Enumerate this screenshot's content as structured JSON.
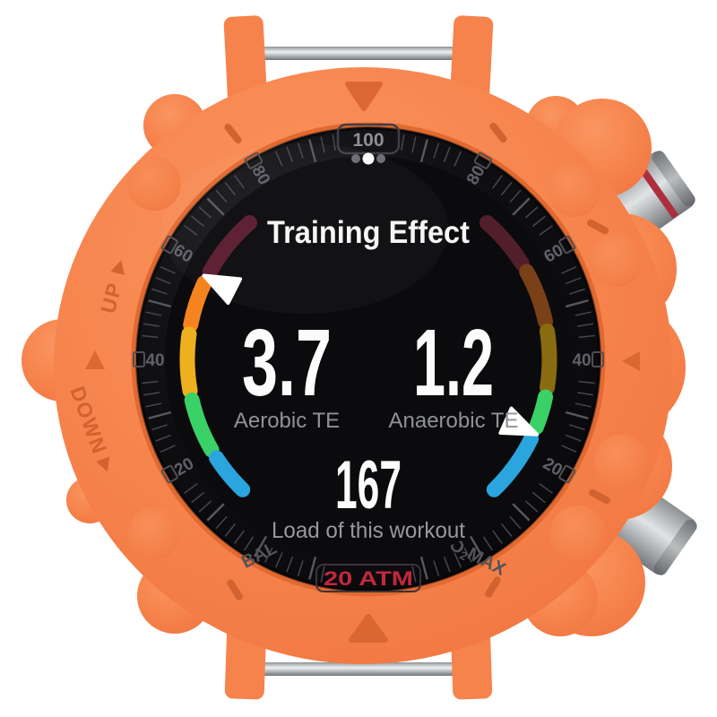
{
  "scene": {
    "background": "#ffffff",
    "case_color": "#f7864f"
  },
  "case": {
    "up_label": "UP",
    "down_label": "DOWN",
    "engraving_color": "#d2622f"
  },
  "bezel": {
    "top_value": "100",
    "side_numbers": [
      {
        "value": "80",
        "angle": 30
      },
      {
        "value": "60",
        "angle": 60
      },
      {
        "value": "40",
        "angle": 90
      },
      {
        "value": "20",
        "angle": 120
      }
    ],
    "bottom_left_label": "BAL",
    "bottom_right_label": "VO2MAX",
    "water_rating": "20 ATM",
    "colors": {
      "tick_minor": "#46464f",
      "tick_major": "#585861",
      "numbers": "#60606a",
      "top_value": "#8f8f96",
      "water_rating": "#c0283c"
    }
  },
  "screen": {
    "page_dots": {
      "count": 3,
      "active_index": 1,
      "active_color": "#ffffff",
      "inactive_color": "#6f6f75"
    },
    "title": "Training Effect",
    "metrics": [
      {
        "value": "3.7",
        "label": "Aerobic TE"
      },
      {
        "value": "1.2",
        "label": "Anaerobic TE"
      }
    ],
    "load_value": "167",
    "load_label": "Load of this workout",
    "gauges": {
      "left": {
        "metric": "Aerobic TE",
        "pointer_angle": -63,
        "segments": [
          {
            "color": "#5f2134",
            "from": -41,
            "to": -61
          },
          {
            "color": "#f5831f",
            "from": -65,
            "to": -79
          },
          {
            "color": "#edb120",
            "from": -82,
            "to": -100
          },
          {
            "color": "#3ad167",
            "from": -103,
            "to": -120
          },
          {
            "color": "#2aa5de",
            "from": -123,
            "to": -136
          }
        ]
      },
      "right": {
        "metric": "Anaerobic TE",
        "pointer_angle": 114,
        "segments": [
          {
            "color": "#531e2c",
            "from": 41,
            "to": 58
          },
          {
            "color": "#7a4018",
            "from": 61,
            "to": 78
          },
          {
            "color": "#8a6c10",
            "from": 81,
            "to": 99
          },
          {
            "color": "#3ad167",
            "from": 102,
            "to": 112
          },
          {
            "color": "#2aa5de",
            "from": 116,
            "to": 136
          }
        ]
      }
    }
  }
}
